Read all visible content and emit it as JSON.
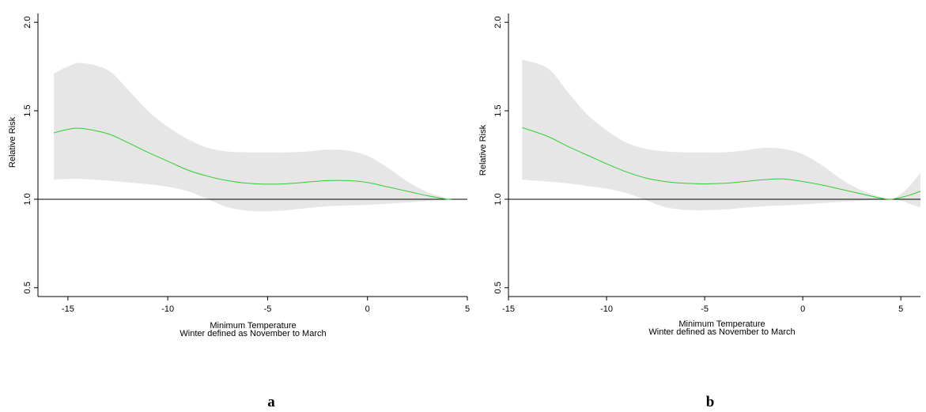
{
  "chart_data": [
    {
      "type": "line",
      "panel_label": "a",
      "xlabel": "Minimum Temperature",
      "xlabel2": "Winter defined as November to March",
      "ylabel": "Relative Risk",
      "xlim": [
        -16.5,
        5
      ],
      "ylim": [
        0.45,
        2.05
      ],
      "xticks": [
        -15,
        -10,
        -5,
        0,
        5
      ],
      "yticks": [
        0.5,
        1.0,
        1.5,
        2.0
      ],
      "ytick_labels": [
        "0.5",
        "1.0",
        "1.5",
        "2.0"
      ],
      "reference_line": 1.0,
      "series": [
        {
          "values": [
            [
              -15.7,
              1.375
            ],
            [
              -15,
              1.395
            ],
            [
              -14.3,
              1.4
            ],
            [
              -13,
              1.37
            ],
            [
              -12,
              1.32
            ],
            [
              -11,
              1.265
            ],
            [
              -10,
              1.215
            ],
            [
              -9,
              1.165
            ],
            [
              -8,
              1.13
            ],
            [
              -7,
              1.105
            ],
            [
              -6,
              1.09
            ],
            [
              -5,
              1.085
            ],
            [
              -4,
              1.088
            ],
            [
              -3,
              1.097
            ],
            [
              -2,
              1.105
            ],
            [
              -1,
              1.105
            ],
            [
              0,
              1.095
            ],
            [
              1,
              1.07
            ],
            [
              2,
              1.045
            ],
            [
              3,
              1.02
            ],
            [
              4,
              1.0
            ],
            [
              4.2,
              1.0
            ]
          ],
          "ci_upper": [
            [
              -15.7,
              1.71
            ],
            [
              -15,
              1.75
            ],
            [
              -14.3,
              1.77
            ],
            [
              -13,
              1.73
            ],
            [
              -12,
              1.62
            ],
            [
              -11,
              1.5
            ],
            [
              -10,
              1.41
            ],
            [
              -9,
              1.34
            ],
            [
              -8,
              1.29
            ],
            [
              -7,
              1.27
            ],
            [
              -6,
              1.265
            ],
            [
              -5,
              1.265
            ],
            [
              -4,
              1.265
            ],
            [
              -3,
              1.27
            ],
            [
              -2,
              1.28
            ],
            [
              -1,
              1.275
            ],
            [
              0,
              1.245
            ],
            [
              1,
              1.18
            ],
            [
              2,
              1.1
            ],
            [
              3,
              1.04
            ],
            [
              4,
              1.005
            ],
            [
              4.2,
              1.0
            ]
          ],
          "ci_lower": [
            [
              -15.7,
              1.11
            ],
            [
              -15,
              1.115
            ],
            [
              -14.3,
              1.115
            ],
            [
              -13,
              1.105
            ],
            [
              -12,
              1.095
            ],
            [
              -11,
              1.085
            ],
            [
              -10,
              1.07
            ],
            [
              -9,
              1.045
            ],
            [
              -8,
              1.0
            ],
            [
              -7,
              0.955
            ],
            [
              -6,
              0.935
            ],
            [
              -5,
              0.932
            ],
            [
              -4,
              0.938
            ],
            [
              -3,
              0.95
            ],
            [
              -2,
              0.96
            ],
            [
              -1,
              0.965
            ],
            [
              0,
              0.968
            ],
            [
              1,
              0.975
            ],
            [
              2,
              0.982
            ],
            [
              3,
              0.99
            ],
            [
              4,
              0.997
            ],
            [
              4.2,
              1.0
            ]
          ]
        }
      ]
    },
    {
      "type": "line",
      "panel_label": "b",
      "xlabel": "Minimum Temperature",
      "xlabel2": "Winter defined as November to March",
      "ylabel": "Relative Risk",
      "xlim": [
        -15,
        6
      ],
      "ylim": [
        0.45,
        2.05
      ],
      "xticks": [
        -15,
        -10,
        -5,
        0,
        5
      ],
      "yticks": [
        0.5,
        1.0,
        1.5,
        2.0
      ],
      "ytick_labels": [
        "0.5",
        "1.0",
        "1.5",
        "2.0"
      ],
      "reference_line": 1.0,
      "series": [
        {
          "values": [
            [
              -14.3,
              1.405
            ],
            [
              -13,
              1.355
            ],
            [
              -12,
              1.3
            ],
            [
              -11,
              1.25
            ],
            [
              -10,
              1.2
            ],
            [
              -9,
              1.155
            ],
            [
              -8,
              1.12
            ],
            [
              -7,
              1.1
            ],
            [
              -6,
              1.09
            ],
            [
              -5,
              1.087
            ],
            [
              -4,
              1.09
            ],
            [
              -3,
              1.1
            ],
            [
              -2,
              1.11
            ],
            [
              -1,
              1.115
            ],
            [
              0,
              1.1
            ],
            [
              1,
              1.08
            ],
            [
              2,
              1.055
            ],
            [
              3,
              1.03
            ],
            [
              4,
              1.005
            ],
            [
              4.5,
              1.0
            ],
            [
              5,
              1.01
            ],
            [
              5.5,
              1.025
            ],
            [
              6,
              1.045
            ]
          ],
          "ci_upper": [
            [
              -14.3,
              1.79
            ],
            [
              -13,
              1.74
            ],
            [
              -12,
              1.61
            ],
            [
              -11,
              1.48
            ],
            [
              -10,
              1.39
            ],
            [
              -9,
              1.32
            ],
            [
              -8,
              1.285
            ],
            [
              -7,
              1.27
            ],
            [
              -6,
              1.265
            ],
            [
              -5,
              1.265
            ],
            [
              -4,
              1.265
            ],
            [
              -3,
              1.275
            ],
            [
              -2,
              1.29
            ],
            [
              -1,
              1.285
            ],
            [
              0,
              1.255
            ],
            [
              1,
              1.19
            ],
            [
              2,
              1.11
            ],
            [
              3,
              1.05
            ],
            [
              4,
              1.012
            ],
            [
              4.5,
              1.0
            ],
            [
              5,
              1.03
            ],
            [
              5.5,
              1.08
            ],
            [
              6,
              1.15
            ]
          ],
          "ci_lower": [
            [
              -14.3,
              1.11
            ],
            [
              -13,
              1.1
            ],
            [
              -12,
              1.09
            ],
            [
              -11,
              1.075
            ],
            [
              -10,
              1.06
            ],
            [
              -9,
              1.035
            ],
            [
              -8,
              0.995
            ],
            [
              -7,
              0.955
            ],
            [
              -6,
              0.94
            ],
            [
              -5,
              0.938
            ],
            [
              -4,
              0.942
            ],
            [
              -3,
              0.952
            ],
            [
              -2,
              0.96
            ],
            [
              -1,
              0.965
            ],
            [
              0,
              0.97
            ],
            [
              1,
              0.978
            ],
            [
              2,
              0.985
            ],
            [
              3,
              0.992
            ],
            [
              4,
              0.998
            ],
            [
              4.5,
              1.0
            ],
            [
              5,
              0.992
            ],
            [
              5.5,
              0.972
            ],
            [
              6,
              0.955
            ]
          ]
        }
      ]
    }
  ]
}
